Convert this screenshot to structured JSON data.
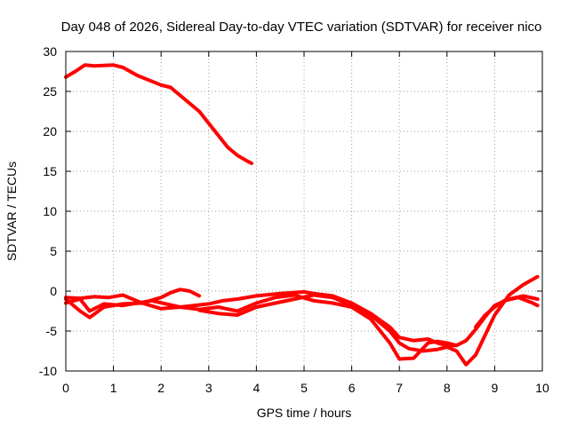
{
  "chart_data": {
    "type": "line",
    "title": "Day 048 of 2026, Sidereal Day-to-day VTEC variation (SDTVAR) for receiver nico",
    "xlabel": "GPS time / hours",
    "ylabel": "SDTVAR / TECUs",
    "xlim": [
      0,
      10
    ],
    "ylim": [
      -10,
      30
    ],
    "xticks": [
      "0",
      "1",
      "2",
      "3",
      "4",
      "5",
      "6",
      "7",
      "8",
      "9",
      "10"
    ],
    "yticks": [
      "-10",
      "-5",
      "0",
      "5",
      "10",
      "15",
      "20",
      "25",
      "30"
    ],
    "grid": true,
    "color": "#ff0000",
    "series": [
      {
        "name": "track-1",
        "x": [
          0,
          0.2,
          0.4,
          0.6,
          1.0,
          1.2,
          1.5,
          2.0,
          2.2,
          2.5,
          2.8,
          3.0,
          3.2,
          3.4,
          3.6,
          3.8,
          3.9
        ],
        "y": [
          26.8,
          27.5,
          28.3,
          28.2,
          28.3,
          28.0,
          27.0,
          25.8,
          25.5,
          24.0,
          22.5,
          21.0,
          19.5,
          18.0,
          17.0,
          16.3,
          16.0
        ]
      },
      {
        "name": "track-2",
        "x": [
          0,
          0.3,
          0.6,
          0.9,
          1.2,
          1.6,
          2.0,
          2.2,
          2.4,
          2.6,
          2.8
        ],
        "y": [
          -0.8,
          -0.9,
          -0.7,
          -0.8,
          -0.5,
          -1.5,
          -0.8,
          -0.2,
          0.2,
          0.0,
          -0.6
        ]
      },
      {
        "name": "track-3",
        "x": [
          0,
          0.3,
          0.5,
          0.8,
          1.2,
          1.8,
          2.4,
          3.0,
          3.3,
          3.6,
          4.0,
          4.5,
          5.0,
          5.2,
          5.6,
          6.0,
          6.4,
          6.8,
          7.0,
          7.3,
          7.6,
          7.8,
          8.0,
          8.2,
          8.4,
          8.6,
          8.8,
          9.0,
          9.3,
          9.6,
          9.9
        ],
        "y": [
          -1.5,
          -1.0,
          -2.5,
          -1.6,
          -1.8,
          -1.2,
          -2.0,
          -1.6,
          -1.2,
          -1.0,
          -0.6,
          -0.3,
          -0.1,
          -0.3,
          -0.6,
          -1.5,
          -2.8,
          -4.5,
          -5.8,
          -6.2,
          -6.0,
          -6.5,
          -6.8,
          -6.8,
          -6.2,
          -4.8,
          -3.2,
          -1.8,
          -1.0,
          -0.6,
          -1.0
        ]
      },
      {
        "name": "track-4",
        "x": [
          0,
          0.3,
          0.5,
          0.8,
          1.2,
          1.6,
          2.0,
          2.4,
          2.8,
          3.2,
          3.6,
          4.0,
          4.4,
          4.8,
          5.2,
          5.6,
          6.0,
          6.4,
          6.8,
          7.0,
          7.3,
          7.6,
          7.8,
          8.0,
          8.2
        ],
        "y": [
          -1.0,
          -2.5,
          -3.3,
          -2.0,
          -1.6,
          -1.5,
          -2.2,
          -2.0,
          -2.3,
          -2.0,
          -2.5,
          -1.5,
          -0.8,
          -0.5,
          -1.2,
          -1.5,
          -2.0,
          -3.5,
          -6.5,
          -8.5,
          -8.4,
          -6.5,
          -6.3,
          -6.5,
          -6.8
        ]
      },
      {
        "name": "track-5",
        "x": [
          2.8,
          3.2,
          3.6,
          4.0,
          4.4,
          4.8,
          5.2,
          5.6,
          6.0,
          6.4,
          6.8,
          7.0,
          7.2,
          7.5,
          7.8,
          8.0,
          8.2,
          8.4,
          8.6,
          8.8,
          9.0,
          9.3,
          9.6,
          9.9
        ],
        "y": [
          -2.4,
          -2.8,
          -3.0,
          -2.0,
          -1.5,
          -1.0,
          -0.5,
          -0.8,
          -1.8,
          -3.0,
          -5.0,
          -6.5,
          -7.2,
          -7.5,
          -7.3,
          -7.0,
          -7.5,
          -9.2,
          -8.0,
          -5.5,
          -3.0,
          -0.5,
          0.8,
          1.8
        ]
      },
      {
        "name": "track-6",
        "x": [
          8.6,
          8.8,
          9.0,
          9.2,
          9.5,
          9.8,
          9.9
        ],
        "y": [
          -4.5,
          -3.0,
          -2.0,
          -1.2,
          -0.8,
          -1.5,
          -1.8
        ]
      }
    ]
  }
}
